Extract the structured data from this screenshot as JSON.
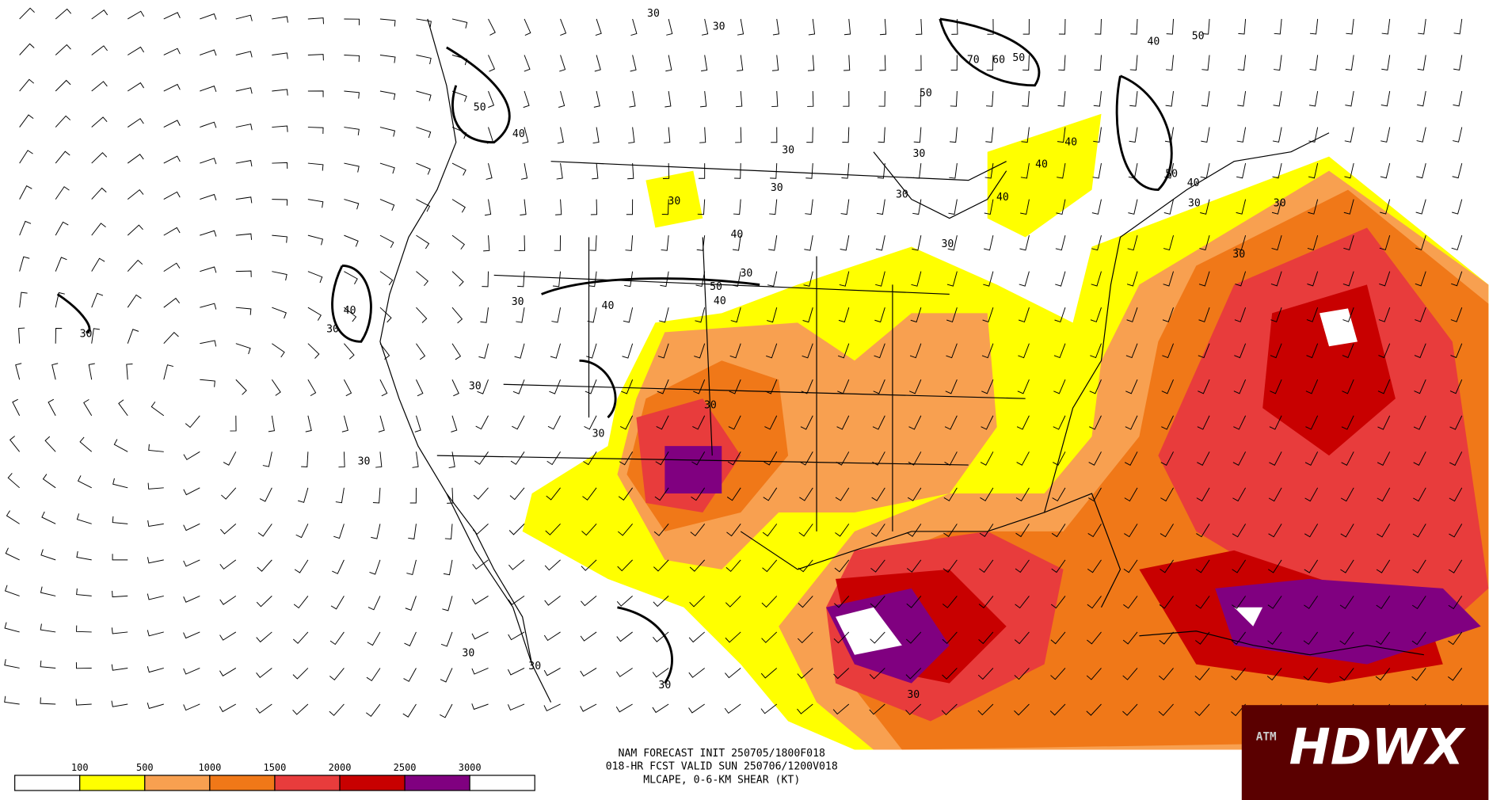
{
  "title_lines": [
    "NAM FORECAST INIT 250705/1800F018",
    "018-HR FCST VALID SUN 250706/1200V018",
    "MLCAPE, 0-6-KM SHEAR (KT)"
  ],
  "colorbar": {
    "levels": [
      100,
      500,
      1000,
      1500,
      2000,
      2500,
      3000
    ],
    "colors": [
      "#ffffff",
      "#ffff00",
      "#f8a050",
      "#f07818",
      "#e83c3c",
      "#c80000",
      "#800080",
      "#ffffff"
    ]
  },
  "logo": {
    "text": "HDWX",
    "badge": "ATM"
  },
  "contour_labels": [
    "30",
    "30",
    "30",
    "30",
    "30",
    "30",
    "30",
    "30",
    "30",
    "30",
    "30",
    "30",
    "30",
    "30",
    "30",
    "30",
    "30",
    "30",
    "30",
    "30",
    "30",
    "30",
    "30",
    "40",
    "40",
    "40",
    "40",
    "40",
    "40",
    "40",
    "40",
    "40",
    "40",
    "50",
    "50",
    "50",
    "50",
    "50",
    "50",
    "70",
    "60"
  ]
}
